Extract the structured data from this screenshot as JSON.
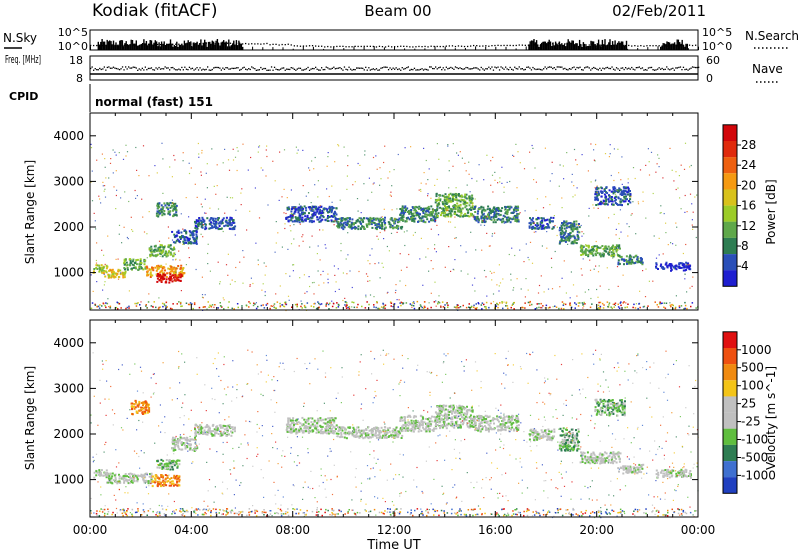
{
  "header": {
    "station": "Kodiak (fitACF)",
    "beam": "Beam 00",
    "date": "02/Feb/2011"
  },
  "chart_data": [
    {
      "type": "scatter",
      "name": "noise-panel",
      "left_label": "N.Sky",
      "right_label": "N.Search",
      "left_ticks": [
        "10^5",
        "10^0"
      ],
      "right_ticks": [
        "10^5",
        "10^0"
      ],
      "series": [
        {
          "name": "N.Sky",
          "style": "bars"
        },
        {
          "name": "N.Search",
          "style": "dotted"
        }
      ],
      "active_intervals_hours": [
        [
          0.3,
          6.0
        ],
        [
          17.3,
          21.2
        ],
        [
          22.5,
          23.6
        ]
      ],
      "search_level_log10": [
        1.3,
        1.3,
        1.5,
        1.6,
        1.8,
        1.9,
        1.7,
        1.5,
        1.2,
        1.0,
        1.0,
        1.0,
        1.0,
        1.0,
        1.1,
        1.2,
        1.3,
        1.4,
        1.8,
        1.5,
        1.3,
        1.2,
        1.2,
        1.3,
        1.3
      ]
    },
    {
      "type": "scatter",
      "name": "freq-nave-panel",
      "left_label": "Freq. [MHz]",
      "right_label": "Nave",
      "left_ticks": [
        "18",
        "8"
      ],
      "right_ticks": [
        "60",
        "0"
      ],
      "freq_mhz": 10.5,
      "nave": 30
    },
    {
      "type": "table",
      "name": "cpid-panel",
      "label": "CPID",
      "program": "normal (fast) 151"
    },
    {
      "type": "heatmap",
      "name": "power-panel",
      "ylabel": "Slant Range [km]",
      "yticks": [
        1000,
        2000,
        3000,
        4000
      ],
      "ylim": [
        180,
        4500
      ],
      "colorbar_label": "Power [dB]",
      "colorbar_ticks": [
        "28",
        "24",
        "20",
        "16",
        "12",
        "8",
        "4"
      ],
      "colors": [
        "#1f1fd0",
        "#2a4fb8",
        "#2e7d52",
        "#5fa84a",
        "#9ccc28",
        "#d8c21c",
        "#f59a12",
        "#ee6010",
        "#e02a0c",
        "#d2060a"
      ],
      "regions": [
        {
          "t": 0.1,
          "r": 1100,
          "dt": 0.55,
          "dr": 180,
          "v": 4
        },
        {
          "t": 0.5,
          "r": 1000,
          "dt": 0.9,
          "dr": 180,
          "v": 5
        },
        {
          "t": 1.3,
          "r": 1200,
          "dt": 0.9,
          "dr": 240,
          "v": 3
        },
        {
          "t": 2.2,
          "r": 1050,
          "dt": 1.5,
          "dr": 250,
          "v": 6
        },
        {
          "t": 2.6,
          "r": 900,
          "dt": 1.0,
          "dr": 200,
          "v": 9
        },
        {
          "t": 2.3,
          "r": 1500,
          "dt": 1.0,
          "dr": 250,
          "v": 3
        },
        {
          "t": 2.6,
          "r": 2400,
          "dt": 0.8,
          "dr": 300,
          "v": 2
        },
        {
          "t": 3.2,
          "r": 1800,
          "dt": 1.0,
          "dr": 300,
          "v": 1
        },
        {
          "t": 4.1,
          "r": 2100,
          "dt": 1.6,
          "dr": 250,
          "v": 1
        },
        {
          "t": 7.7,
          "r": 2300,
          "dt": 2.0,
          "dr": 350,
          "v": 1
        },
        {
          "t": 9.7,
          "r": 2100,
          "dt": 2.6,
          "dr": 250,
          "v": 2
        },
        {
          "t": 12.2,
          "r": 2300,
          "dt": 1.5,
          "dr": 350,
          "v": 2
        },
        {
          "t": 13.6,
          "r": 2500,
          "dt": 1.5,
          "dr": 500,
          "v": 3
        },
        {
          "t": 15.1,
          "r": 2300,
          "dt": 1.8,
          "dr": 350,
          "v": 2
        },
        {
          "t": 17.3,
          "r": 2100,
          "dt": 1.0,
          "dr": 250,
          "v": 1
        },
        {
          "t": 18.5,
          "r": 1900,
          "dt": 0.8,
          "dr": 500,
          "v": 2
        },
        {
          "t": 19.3,
          "r": 1500,
          "dt": 1.6,
          "dr": 250,
          "v": 3
        },
        {
          "t": 20.8,
          "r": 1300,
          "dt": 1.0,
          "dr": 200,
          "v": 2
        },
        {
          "t": 22.3,
          "r": 1150,
          "dt": 1.4,
          "dr": 180,
          "v": 0
        },
        {
          "t": 19.9,
          "r": 2700,
          "dt": 1.4,
          "dr": 400,
          "v": 1
        }
      ]
    },
    {
      "type": "heatmap",
      "name": "velocity-panel",
      "ylabel": "Slant Range [km]",
      "yticks": [
        1000,
        2000,
        3000,
        4000
      ],
      "ylim": [
        180,
        4500
      ],
      "colorbar_label": "Velocity [m s^-1]",
      "colorbar_ticks": [
        "1000",
        "500",
        "100",
        "25",
        "-25",
        "-100",
        "-500",
        "-1000"
      ],
      "colors": [
        "#2040c0",
        "#3f70d0",
        "#2e7d52",
        "#5fbe3e",
        "#c0c0c0",
        "#c0c0c0",
        "#f3c418",
        "#f08a10",
        "#ee5010",
        "#e01010"
      ],
      "regions": [
        {
          "t": 0.1,
          "r": 1150,
          "dt": 0.6,
          "dr": 180,
          "v": 4
        },
        {
          "t": 0.6,
          "r": 1050,
          "dt": 1.8,
          "dr": 220,
          "v": 4
        },
        {
          "t": 2.4,
          "r": 1000,
          "dt": 1.1,
          "dr": 250,
          "v": 7
        },
        {
          "t": 2.6,
          "r": 1350,
          "dt": 0.9,
          "dr": 220,
          "v": 3
        },
        {
          "t": 1.6,
          "r": 2600,
          "dt": 0.7,
          "dr": 300,
          "v": 7
        },
        {
          "t": 3.2,
          "r": 1800,
          "dt": 1.0,
          "dr": 300,
          "v": 4
        },
        {
          "t": 4.1,
          "r": 2100,
          "dt": 1.6,
          "dr": 250,
          "v": 4
        },
        {
          "t": 7.7,
          "r": 2200,
          "dt": 2.0,
          "dr": 350,
          "v": 4
        },
        {
          "t": 9.7,
          "r": 2050,
          "dt": 2.6,
          "dr": 250,
          "v": 4
        },
        {
          "t": 12.2,
          "r": 2250,
          "dt": 1.5,
          "dr": 350,
          "v": 4
        },
        {
          "t": 13.6,
          "r": 2400,
          "dt": 1.5,
          "dr": 500,
          "v": 4
        },
        {
          "t": 15.1,
          "r": 2250,
          "dt": 1.8,
          "dr": 350,
          "v": 4
        },
        {
          "t": 17.3,
          "r": 2000,
          "dt": 1.0,
          "dr": 250,
          "v": 4
        },
        {
          "t": 18.5,
          "r": 1900,
          "dt": 0.8,
          "dr": 500,
          "v": 3
        },
        {
          "t": 19.3,
          "r": 1500,
          "dt": 1.6,
          "dr": 250,
          "v": 4
        },
        {
          "t": 20.8,
          "r": 1250,
          "dt": 1.0,
          "dr": 200,
          "v": 4
        },
        {
          "t": 22.3,
          "r": 1150,
          "dt": 1.4,
          "dr": 180,
          "v": 4
        },
        {
          "t": 19.9,
          "r": 2600,
          "dt": 1.2,
          "dr": 350,
          "v": 3
        }
      ]
    }
  ],
  "xaxis": {
    "label": "Time UT",
    "ticks": [
      "00:00",
      "04:00",
      "08:00",
      "12:00",
      "16:00",
      "20:00",
      "00:00"
    ],
    "range_hours": [
      0,
      24
    ]
  }
}
